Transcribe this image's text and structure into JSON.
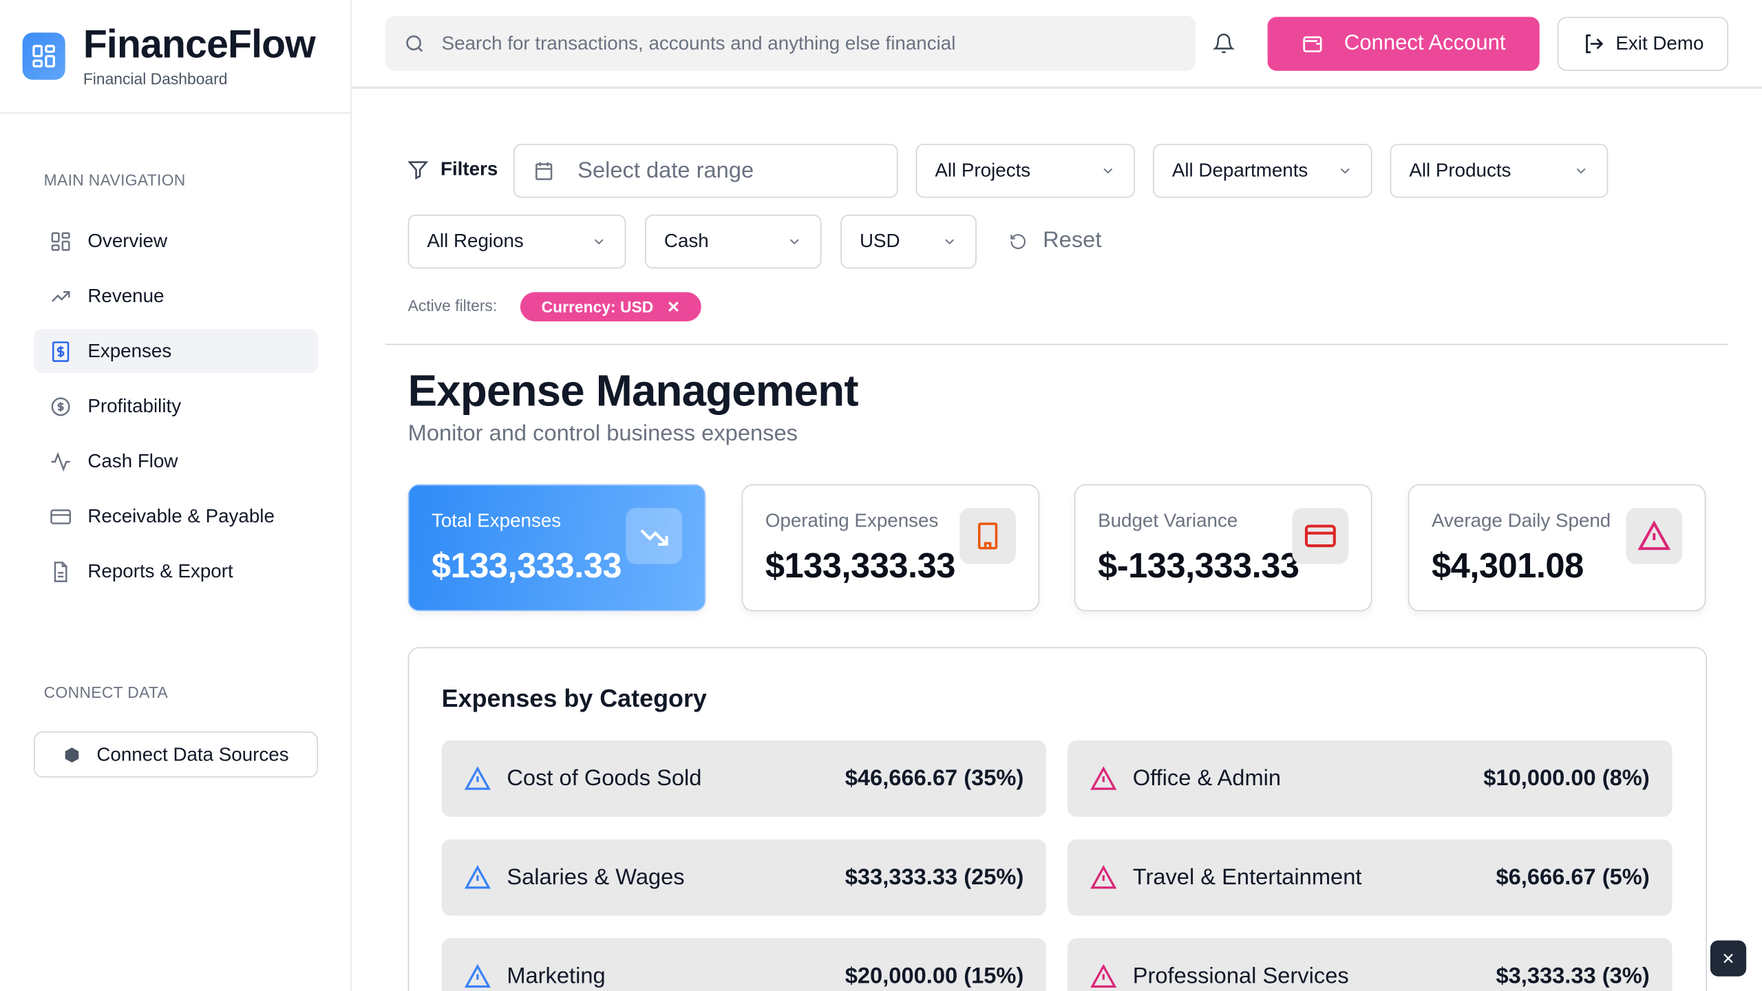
{
  "brand": {
    "name": "FinanceFlow",
    "subtitle": "Financial Dashboard"
  },
  "sidebar": {
    "main_nav_label": "MAIN NAVIGATION",
    "items": [
      {
        "label": "Overview",
        "icon": "layout-grid-icon"
      },
      {
        "label": "Revenue",
        "icon": "trending-up-icon"
      },
      {
        "label": "Expenses",
        "icon": "receipt-dollar-icon",
        "active": true
      },
      {
        "label": "Profitability",
        "icon": "circle-dollar-icon"
      },
      {
        "label": "Cash Flow",
        "icon": "activity-icon"
      },
      {
        "label": "Receivable & Payable",
        "icon": "credit-card-icon"
      },
      {
        "label": "Reports & Export",
        "icon": "file-text-icon"
      }
    ],
    "connect_label": "CONNECT DATA",
    "connect_button": "Connect Data Sources"
  },
  "header": {
    "search_placeholder": "Search for transactions, accounts and anything else financial",
    "connect_account": "Connect Account",
    "exit_demo": "Exit Demo"
  },
  "filters": {
    "label": "Filters",
    "date_placeholder": "Select date range",
    "projects": "All Projects",
    "departments": "All Departments",
    "products": "All Products",
    "regions": "All Regions",
    "account_type": "Cash",
    "currency": "USD",
    "reset": "Reset",
    "active_label": "Active filters:",
    "active_chip": "Currency: USD"
  },
  "page": {
    "title": "Expense Management",
    "subtitle": "Monitor and control business expenses"
  },
  "cards": [
    {
      "label": "Total Expenses",
      "value": "$133,333.33",
      "icon": "trending-down-icon"
    },
    {
      "label": "Operating Expenses",
      "value": "$133,333.33",
      "icon": "building-icon",
      "color": "#ea580c"
    },
    {
      "label": "Budget Variance",
      "value": "$-133,333.33",
      "icon": "credit-card-icon",
      "color": "#dc2626"
    },
    {
      "label": "Average Daily Spend",
      "value": "$4,301.08",
      "icon": "alert-triangle-icon",
      "color": "#db2777"
    }
  ],
  "categories": {
    "title": "Expenses by Category",
    "items": [
      {
        "name": "Cost of Goods Sold",
        "amount": "$46,666.67 (35%)",
        "color": "#3b82f6"
      },
      {
        "name": "Office & Admin",
        "amount": "$10,000.00 (8%)",
        "color": "#db2777"
      },
      {
        "name": "Salaries & Wages",
        "amount": "$33,333.33 (25%)",
        "color": "#3b82f6"
      },
      {
        "name": "Travel & Entertainment",
        "amount": "$6,666.67 (5%)",
        "color": "#db2777"
      },
      {
        "name": "Marketing",
        "amount": "$20,000.00 (15%)",
        "color": "#3b82f6"
      },
      {
        "name": "Professional Services",
        "amount": "$3,333.33 (3%)",
        "color": "#db2777"
      }
    ]
  }
}
